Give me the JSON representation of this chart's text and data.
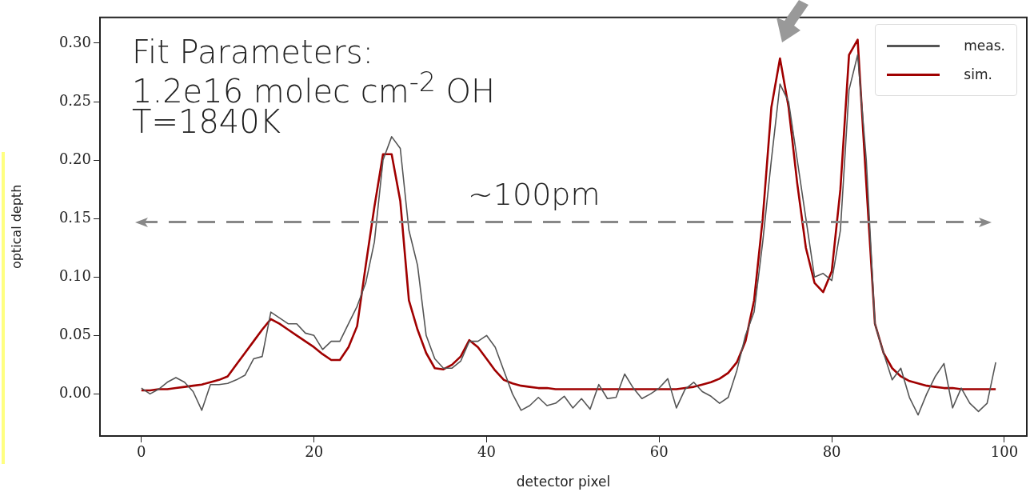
{
  "chart_data": {
    "type": "line",
    "xlabel": "detector pixel",
    "ylabel": "optical depth",
    "annotations": [
      "Fit Parameters:",
      "1.2e16 molec cm$^{-2}$ OH",
      "T=1840K"
    ],
    "ref_lines": [
      {
        "axis": "y",
        "value": 0.147,
        "label": "~100pm",
        "color": "#888888",
        "line_style": "dashed"
      }
    ],
    "x": [
      0,
      1,
      2,
      3,
      4,
      5,
      6,
      7,
      8,
      9,
      10,
      11,
      12,
      13,
      14,
      15,
      16,
      17,
      18,
      19,
      20,
      21,
      22,
      23,
      24,
      25,
      26,
      27,
      28,
      29,
      30,
      31,
      32,
      33,
      34,
      35,
      36,
      37,
      38,
      39,
      40,
      41,
      42,
      43,
      44,
      45,
      46,
      47,
      48,
      49,
      50,
      51,
      52,
      53,
      54,
      55,
      56,
      57,
      58,
      59,
      60,
      61,
      62,
      63,
      64,
      65,
      66,
      67,
      68,
      69,
      70,
      71,
      72,
      73,
      74,
      75,
      76,
      77,
      78,
      79,
      80,
      81,
      82,
      83,
      84,
      85,
      86,
      87,
      88,
      89,
      90,
      91,
      92,
      93,
      94,
      95,
      96,
      97,
      98,
      99
    ],
    "series": [
      {
        "name": "meas.",
        "color": "#555555",
        "values": [
          0.005,
          0.0,
          0.004,
          0.01,
          0.014,
          0.01,
          0.002,
          -0.014,
          0.008,
          0.008,
          0.009,
          0.012,
          0.016,
          0.03,
          0.032,
          0.07,
          0.065,
          0.06,
          0.06,
          0.052,
          0.05,
          0.038,
          0.045,
          0.045,
          0.06,
          0.075,
          0.095,
          0.13,
          0.2,
          0.22,
          0.21,
          0.14,
          0.11,
          0.05,
          0.03,
          0.022,
          0.022,
          0.028,
          0.045,
          0.045,
          0.05,
          0.04,
          0.02,
          0.0,
          -0.014,
          -0.01,
          -0.003,
          -0.01,
          -0.008,
          -0.002,
          -0.012,
          -0.004,
          -0.013,
          0.008,
          -0.004,
          -0.003,
          0.017,
          0.005,
          -0.004,
          0.0,
          0.005,
          0.013,
          -0.012,
          0.004,
          0.01,
          0.002,
          -0.002,
          -0.008,
          -0.003,
          0.02,
          0.05,
          0.07,
          0.13,
          0.2,
          0.265,
          0.25,
          0.2,
          0.15,
          0.1,
          0.103,
          0.097,
          0.14,
          0.26,
          0.29,
          0.2,
          0.06,
          0.035,
          0.012,
          0.022,
          -0.003,
          -0.018,
          0.0,
          0.015,
          0.026,
          -0.012,
          0.005,
          -0.008,
          -0.015,
          -0.008,
          0.027
        ]
      },
      {
        "name": "sim.",
        "color": "#a00000",
        "values": [
          0.003,
          0.003,
          0.004,
          0.004,
          0.005,
          0.006,
          0.007,
          0.008,
          0.01,
          0.012,
          0.015,
          0.025,
          0.035,
          0.045,
          0.055,
          0.064,
          0.06,
          0.055,
          0.05,
          0.045,
          0.04,
          0.034,
          0.029,
          0.029,
          0.04,
          0.058,
          0.11,
          0.16,
          0.205,
          0.205,
          0.165,
          0.08,
          0.055,
          0.035,
          0.022,
          0.021,
          0.025,
          0.032,
          0.046,
          0.04,
          0.03,
          0.02,
          0.012,
          0.009,
          0.007,
          0.006,
          0.005,
          0.005,
          0.004,
          0.004,
          0.004,
          0.004,
          0.004,
          0.004,
          0.004,
          0.004,
          0.004,
          0.004,
          0.004,
          0.004,
          0.004,
          0.004,
          0.004,
          0.005,
          0.006,
          0.008,
          0.01,
          0.013,
          0.018,
          0.027,
          0.045,
          0.08,
          0.15,
          0.245,
          0.287,
          0.245,
          0.18,
          0.125,
          0.095,
          0.087,
          0.105,
          0.175,
          0.29,
          0.303,
          0.18,
          0.06,
          0.035,
          0.022,
          0.015,
          0.011,
          0.009,
          0.007,
          0.006,
          0.005,
          0.005,
          0.004,
          0.004,
          0.004,
          0.004,
          0.004
        ]
      }
    ],
    "xlim": [
      -4.8,
      102.6
    ],
    "xticks": [
      0,
      20,
      40,
      60,
      80,
      100
    ],
    "ylim": [
      -0.036,
      0.322
    ],
    "yticks": [
      {
        "value": 0,
        "label": "0.00"
      },
      {
        "value": 0.05,
        "label": "0.05"
      },
      {
        "value": 0.1,
        "label": "0.10"
      },
      {
        "value": 0.15,
        "label": "0.15"
      },
      {
        "value": 0.2,
        "label": "0.20"
      },
      {
        "value": 0.25,
        "label": "0.25"
      },
      {
        "value": 0.3,
        "label": "0.30"
      }
    ],
    "grid": false,
    "legend": "top right"
  }
}
